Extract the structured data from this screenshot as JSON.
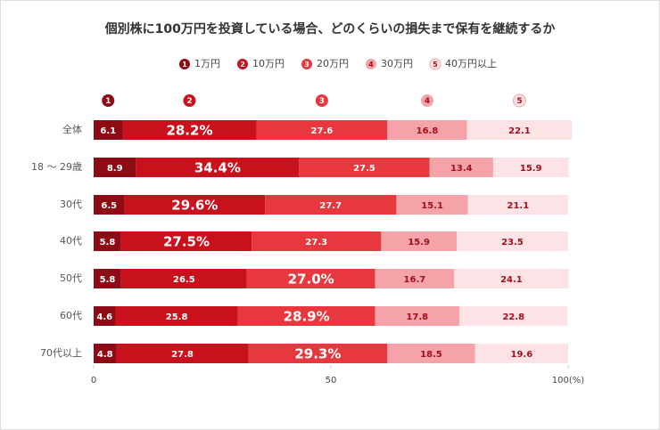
{
  "chart_data": {
    "type": "stacked-bar-horizontal",
    "title": "個別株に100万円を投資している場合、どのくらいの損失まで保有を継続するか",
    "categories": [
      "全体",
      "18 〜 29歳",
      "30代",
      "40代",
      "50代",
      "60代",
      "70代以上"
    ],
    "series": [
      {
        "name": "1万円",
        "marker": "1",
        "color": "#8e0b16",
        "values": [
          6.1,
          8.9,
          6.5,
          5.8,
          5.8,
          4.6,
          4.8
        ],
        "value_labels": [
          "6.1",
          "8.9",
          "6.5",
          "5.8",
          "5.8",
          "4.6",
          "4.8"
        ]
      },
      {
        "name": "10万円",
        "marker": "2",
        "color": "#c9101d",
        "values": [
          28.2,
          34.4,
          29.6,
          27.5,
          26.5,
          25.8,
          27.8
        ],
        "value_labels": [
          "28.2%",
          "34.4%",
          "29.6%",
          "27.5%",
          "26.5",
          "25.8",
          "27.8"
        ]
      },
      {
        "name": "20万円",
        "marker": "3",
        "color": "#e8383f",
        "values": [
          27.6,
          27.5,
          27.7,
          27.3,
          27.0,
          28.9,
          29.3
        ],
        "value_labels": [
          "27.6",
          "27.5",
          "27.7",
          "27.3",
          "27.0%",
          "28.9%",
          "29.3%"
        ]
      },
      {
        "name": "30万円",
        "marker": "4",
        "color": "#f4a3a8",
        "values": [
          16.8,
          13.4,
          15.1,
          15.9,
          16.7,
          17.8,
          18.5
        ],
        "value_labels": [
          "16.8",
          "13.4",
          "15.1",
          "15.9",
          "16.7",
          "17.8",
          "18.5"
        ]
      },
      {
        "name": "40万円以上",
        "marker": "5",
        "color": "#fde3e5",
        "values": [
          22.1,
          15.9,
          21.1,
          23.5,
          24.1,
          22.8,
          19.6
        ],
        "value_labels": [
          "22.1",
          "15.9",
          "21.1",
          "23.5",
          "24.1",
          "22.8",
          "19.6"
        ]
      }
    ],
    "xlim": [
      0,
      100
    ],
    "xticks": [
      0,
      50,
      {
        "value": 100,
        "label": "100(%)"
      }
    ]
  }
}
